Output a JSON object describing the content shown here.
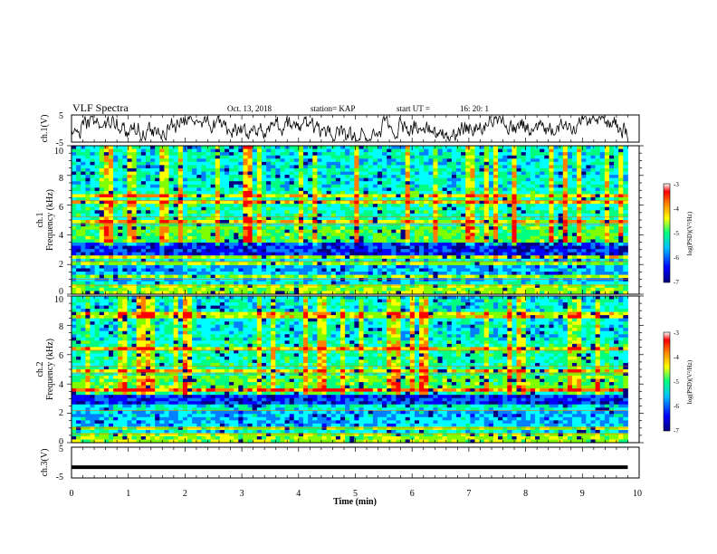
{
  "header": {
    "title": "VLF Spectra",
    "date": "Oct. 13, 2018",
    "station": "station= KAP",
    "start_label": "start  UT  =",
    "start_time": "16: 20: 1"
  },
  "chart_data": [
    {
      "type": "line",
      "panel": "ch1-waveform",
      "ylabel": "ch.1(V)",
      "ylim": [
        -5,
        5
      ],
      "yticks": [
        "5",
        "-5"
      ],
      "xlim": [
        0,
        10
      ],
      "data_xlim": [
        0,
        9.8
      ],
      "color": "#000000",
      "description_values": "noisy waveform oscillating roughly between -3 and +3 V"
    },
    {
      "type": "heatmap",
      "panel": "ch1-spectrogram",
      "ylabel_line1": "ch.1",
      "ylabel_line2": "Frequency (kHz)",
      "ylim": [
        0,
        10
      ],
      "yticks": [
        "0",
        "2",
        "4",
        "6",
        "8",
        "10"
      ],
      "xlim": [
        0,
        10
      ],
      "data_xlim": [
        0,
        9.8
      ],
      "colorbar": {
        "ticks": [
          "-3",
          "-4",
          "-5",
          "-6",
          "-7"
        ],
        "label": "log(PSD)(V²/Hz)",
        "range": [
          -7,
          -3
        ]
      }
    },
    {
      "type": "heatmap",
      "panel": "ch2-spectrogram",
      "ylabel_line1": "ch.2",
      "ylabel_line2": "Frequency (kHz)",
      "ylim": [
        0,
        10
      ],
      "yticks": [
        "0",
        "2",
        "4",
        "6",
        "8",
        "10"
      ],
      "xlim": [
        0,
        10
      ],
      "data_xlim": [
        0,
        9.8
      ],
      "colorbar": {
        "ticks": [
          "-3",
          "-4",
          "-5",
          "-6",
          "-7"
        ],
        "label": "log(PSD)(V²/Hz)",
        "range": [
          -7,
          -3
        ]
      }
    },
    {
      "type": "line",
      "panel": "ch3-waveform",
      "ylabel": "ch.3(V)",
      "ylim": [
        -5,
        5
      ],
      "yticks": [
        "5",
        "-5"
      ],
      "xlim": [
        0,
        10
      ],
      "data_xlim": [
        0,
        9.8
      ],
      "constant_value": -1.5,
      "color": "#000000"
    }
  ],
  "xaxis": {
    "label": "Time  (min)",
    "ticks": [
      "0",
      "1",
      "2",
      "3",
      "4",
      "5",
      "6",
      "7",
      "8",
      "9",
      "10"
    ]
  },
  "colors": {
    "spectrogram_palette": [
      "#000080",
      "#0000ff",
      "#0080ff",
      "#00ffff",
      "#00ff80",
      "#80ff00",
      "#ffff00",
      "#ff8000",
      "#ff0000"
    ]
  }
}
